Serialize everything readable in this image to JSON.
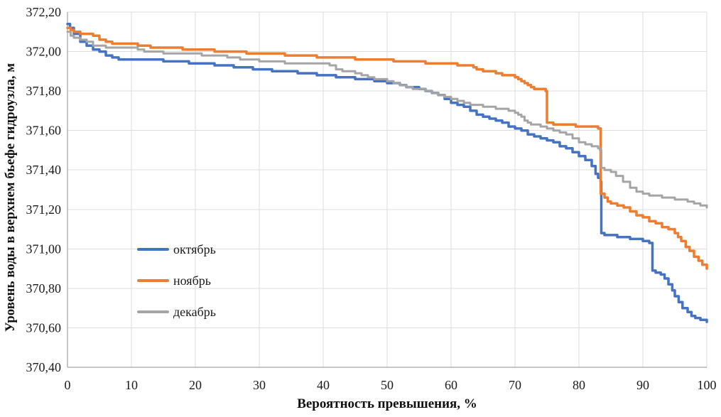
{
  "chart_data": {
    "type": "line",
    "title": "",
    "xlabel": "Вероятность превышения, %",
    "ylabel": "Уровень воды в верхнем бьефе гидроузла, м",
    "xlim": [
      0,
      100
    ],
    "ylim": [
      370.4,
      372.2
    ],
    "grid": true,
    "legend_position": "inside-left-middle",
    "interpolation": "step-after",
    "x_ticks": [
      {
        "v": 0,
        "label": "0"
      },
      {
        "v": 10,
        "label": "10"
      },
      {
        "v": 20,
        "label": "20"
      },
      {
        "v": 30,
        "label": "30"
      },
      {
        "v": 40,
        "label": "40"
      },
      {
        "v": 50,
        "label": "50"
      },
      {
        "v": 60,
        "label": "60"
      },
      {
        "v": 70,
        "label": "70"
      },
      {
        "v": 80,
        "label": "80"
      },
      {
        "v": 90,
        "label": "90"
      },
      {
        "v": 100,
        "label": "100"
      }
    ],
    "y_ticks": [
      {
        "v": 372.2,
        "label": "372,20"
      },
      {
        "v": 372.0,
        "label": "372,00"
      },
      {
        "v": 371.8,
        "label": "371,80"
      },
      {
        "v": 371.6,
        "label": "371,60"
      },
      {
        "v": 371.4,
        "label": "371,40"
      },
      {
        "v": 371.2,
        "label": "371,20"
      },
      {
        "v": 371.0,
        "label": "371,00"
      },
      {
        "v": 370.8,
        "label": "370,80"
      },
      {
        "v": 370.6,
        "label": "370,60"
      },
      {
        "v": 370.4,
        "label": "370,40"
      }
    ],
    "colors": {
      "grid": "#dcdcdc",
      "axis": "#8f8f8f",
      "text": "#1a1a1a"
    },
    "series": [
      {
        "id": "october",
        "name": "октябрь",
        "color": "#4472c4",
        "points": [
          [
            0,
            372.14
          ],
          [
            0.4,
            372.12
          ],
          [
            1,
            372.09
          ],
          [
            2,
            372.05
          ],
          [
            3,
            372.03
          ],
          [
            4,
            372.01
          ],
          [
            5,
            372.0
          ],
          [
            6,
            371.98
          ],
          [
            7,
            371.97
          ],
          [
            8,
            371.96
          ],
          [
            14,
            371.96
          ],
          [
            15,
            371.95
          ],
          [
            18,
            371.95
          ],
          [
            19,
            371.94
          ],
          [
            22,
            371.94
          ],
          [
            23,
            371.93
          ],
          [
            25,
            371.93
          ],
          [
            26,
            371.92
          ],
          [
            28,
            371.92
          ],
          [
            29,
            371.91
          ],
          [
            31,
            371.91
          ],
          [
            32,
            371.9
          ],
          [
            35,
            371.9
          ],
          [
            36,
            371.89
          ],
          [
            38,
            371.89
          ],
          [
            39,
            371.88
          ],
          [
            41,
            371.88
          ],
          [
            42,
            371.87
          ],
          [
            44,
            371.87
          ],
          [
            45,
            371.86
          ],
          [
            47,
            371.86
          ],
          [
            48,
            371.85
          ],
          [
            50,
            371.84
          ],
          [
            51,
            371.84
          ],
          [
            52,
            371.83
          ],
          [
            53,
            371.82
          ],
          [
            54,
            371.82
          ],
          [
            55,
            371.81
          ],
          [
            56,
            371.8
          ],
          [
            57,
            371.79
          ],
          [
            58,
            371.78
          ],
          [
            59,
            371.76
          ],
          [
            60,
            371.74
          ],
          [
            61,
            371.73
          ],
          [
            62,
            371.72
          ],
          [
            63,
            371.7
          ],
          [
            64,
            371.68
          ],
          [
            65,
            371.67
          ],
          [
            66,
            371.66
          ],
          [
            67,
            371.65
          ],
          [
            68,
            371.64
          ],
          [
            69,
            371.62
          ],
          [
            70,
            371.61
          ],
          [
            71,
            371.6
          ],
          [
            72,
            371.58
          ],
          [
            73,
            371.57
          ],
          [
            74,
            371.56
          ],
          [
            75,
            371.55
          ],
          [
            76,
            371.54
          ],
          [
            77,
            371.52
          ],
          [
            78,
            371.51
          ],
          [
            79,
            371.49
          ],
          [
            80,
            371.47
          ],
          [
            81,
            371.45
          ],
          [
            82,
            371.42
          ],
          [
            82.6,
            371.38
          ],
          [
            83,
            371.36
          ],
          [
            83.4,
            371.34
          ],
          [
            83.5,
            371.08
          ],
          [
            84,
            371.07
          ],
          [
            86,
            371.06
          ],
          [
            88,
            371.05
          ],
          [
            90,
            371.04
          ],
          [
            91,
            371.03
          ],
          [
            91.4,
            371.03
          ],
          [
            91.5,
            370.89
          ],
          [
            92,
            370.88
          ],
          [
            92.8,
            370.87
          ],
          [
            93.4,
            370.85
          ],
          [
            94,
            370.82
          ],
          [
            94.6,
            370.79
          ],
          [
            95,
            370.76
          ],
          [
            95.6,
            370.73
          ],
          [
            96.2,
            370.7
          ],
          [
            97,
            370.68
          ],
          [
            97.6,
            370.66
          ],
          [
            98.2,
            370.65
          ],
          [
            99,
            370.64
          ],
          [
            100,
            370.63
          ]
        ]
      },
      {
        "id": "november",
        "name": "ноябрь",
        "color": "#ed7d31",
        "points": [
          [
            0,
            372.12
          ],
          [
            0.5,
            372.11
          ],
          [
            1,
            372.1
          ],
          [
            2,
            372.09
          ],
          [
            4,
            372.08
          ],
          [
            5,
            372.06
          ],
          [
            6,
            372.05
          ],
          [
            7,
            372.04
          ],
          [
            10,
            372.04
          ],
          [
            11,
            372.03
          ],
          [
            12,
            372.03
          ],
          [
            13,
            372.02
          ],
          [
            17,
            372.02
          ],
          [
            18,
            372.01
          ],
          [
            22,
            372.01
          ],
          [
            23,
            372.0
          ],
          [
            27,
            372.0
          ],
          [
            28,
            371.99
          ],
          [
            33,
            371.99
          ],
          [
            34,
            371.98
          ],
          [
            38,
            371.98
          ],
          [
            39,
            371.97
          ],
          [
            44,
            371.97
          ],
          [
            45,
            371.96
          ],
          [
            50,
            371.96
          ],
          [
            51,
            371.95
          ],
          [
            55,
            371.95
          ],
          [
            56,
            371.94
          ],
          [
            60,
            371.94
          ],
          [
            61,
            371.93
          ],
          [
            63,
            371.93
          ],
          [
            63.5,
            371.92
          ],
          [
            64,
            371.91
          ],
          [
            65,
            371.9
          ],
          [
            66,
            371.9
          ],
          [
            67,
            371.89
          ],
          [
            68,
            371.88
          ],
          [
            69,
            371.88
          ],
          [
            70,
            371.87
          ],
          [
            70.5,
            371.86
          ],
          [
            71,
            371.85
          ],
          [
            71.5,
            371.84
          ],
          [
            72,
            371.83
          ],
          [
            72.5,
            371.82
          ],
          [
            73,
            371.81
          ],
          [
            74.6,
            371.81
          ],
          [
            74.8,
            371.8
          ],
          [
            75,
            371.64
          ],
          [
            76,
            371.63
          ],
          [
            79,
            371.63
          ],
          [
            79.5,
            371.62
          ],
          [
            82.6,
            371.62
          ],
          [
            83,
            371.61
          ],
          [
            83.3,
            371.61
          ],
          [
            83.4,
            371.28
          ],
          [
            84,
            371.26
          ],
          [
            84.5,
            371.24
          ],
          [
            85,
            371.23
          ],
          [
            86,
            371.22
          ],
          [
            87,
            371.21
          ],
          [
            88,
            371.19
          ],
          [
            89,
            371.17
          ],
          [
            90,
            371.16
          ],
          [
            91,
            371.14
          ],
          [
            92,
            371.13
          ],
          [
            93,
            371.11
          ],
          [
            94,
            371.1
          ],
          [
            95,
            371.08
          ],
          [
            95.5,
            371.06
          ],
          [
            96,
            371.04
          ],
          [
            96.7,
            371.01
          ],
          [
            97.3,
            370.99
          ],
          [
            98,
            370.96
          ],
          [
            98.7,
            370.94
          ],
          [
            99.3,
            370.92
          ],
          [
            100,
            370.9
          ]
        ]
      },
      {
        "id": "december",
        "name": "декабрь",
        "color": "#a5a5a5",
        "points": [
          [
            0,
            372.1
          ],
          [
            0.5,
            372.08
          ],
          [
            1,
            372.07
          ],
          [
            2,
            372.06
          ],
          [
            3,
            372.05
          ],
          [
            4,
            372.03
          ],
          [
            5,
            372.03
          ],
          [
            6,
            372.02
          ],
          [
            10,
            372.02
          ],
          [
            11,
            372.01
          ],
          [
            12,
            372.0
          ],
          [
            14,
            372.0
          ],
          [
            15,
            371.99
          ],
          [
            20,
            371.99
          ],
          [
            21,
            371.98
          ],
          [
            24,
            371.98
          ],
          [
            25,
            371.97
          ],
          [
            27,
            371.96
          ],
          [
            29,
            371.96
          ],
          [
            30,
            371.95
          ],
          [
            33,
            371.95
          ],
          [
            34,
            371.94
          ],
          [
            40,
            371.94
          ],
          [
            41,
            371.93
          ],
          [
            42,
            371.91
          ],
          [
            43,
            371.9
          ],
          [
            44,
            371.9
          ],
          [
            45,
            371.89
          ],
          [
            46,
            371.88
          ],
          [
            47,
            371.87
          ],
          [
            48,
            371.86
          ],
          [
            49,
            371.86
          ],
          [
            50,
            371.85
          ],
          [
            51,
            371.84
          ],
          [
            52,
            371.83
          ],
          [
            53,
            371.82
          ],
          [
            54,
            371.81
          ],
          [
            55,
            371.81
          ],
          [
            56,
            371.8
          ],
          [
            57,
            371.79
          ],
          [
            58,
            371.78
          ],
          [
            59,
            371.77
          ],
          [
            60,
            371.76
          ],
          [
            61,
            371.75
          ],
          [
            62,
            371.74
          ],
          [
            63,
            371.73
          ],
          [
            64,
            371.73
          ],
          [
            65,
            371.72
          ],
          [
            66,
            371.72
          ],
          [
            67,
            371.71
          ],
          [
            68,
            371.71
          ],
          [
            69,
            371.7
          ],
          [
            70,
            371.69
          ],
          [
            70.5,
            371.68
          ],
          [
            71,
            371.67
          ],
          [
            71.5,
            371.65
          ],
          [
            72,
            371.64
          ],
          [
            72.5,
            371.63
          ],
          [
            73.5,
            371.63
          ],
          [
            74,
            371.62
          ],
          [
            75,
            371.61
          ],
          [
            76,
            371.6
          ],
          [
            77,
            371.59
          ],
          [
            78,
            371.58
          ],
          [
            79,
            371.56
          ],
          [
            80,
            371.54
          ],
          [
            81,
            371.53
          ],
          [
            82,
            371.52
          ],
          [
            83,
            371.51
          ],
          [
            83.3,
            371.5
          ],
          [
            83.5,
            371.41
          ],
          [
            84,
            371.4
          ],
          [
            85,
            371.39
          ],
          [
            85.8,
            371.37
          ],
          [
            86.9,
            371.34
          ],
          [
            88,
            371.31
          ],
          [
            89,
            371.29
          ],
          [
            90,
            371.28
          ],
          [
            91,
            371.27
          ],
          [
            92,
            371.27
          ],
          [
            93,
            371.26
          ],
          [
            94,
            371.26
          ],
          [
            95,
            371.25
          ],
          [
            96,
            371.25
          ],
          [
            97,
            371.24
          ],
          [
            98,
            371.23
          ],
          [
            99,
            371.22
          ],
          [
            100,
            371.21
          ]
        ]
      }
    ]
  }
}
